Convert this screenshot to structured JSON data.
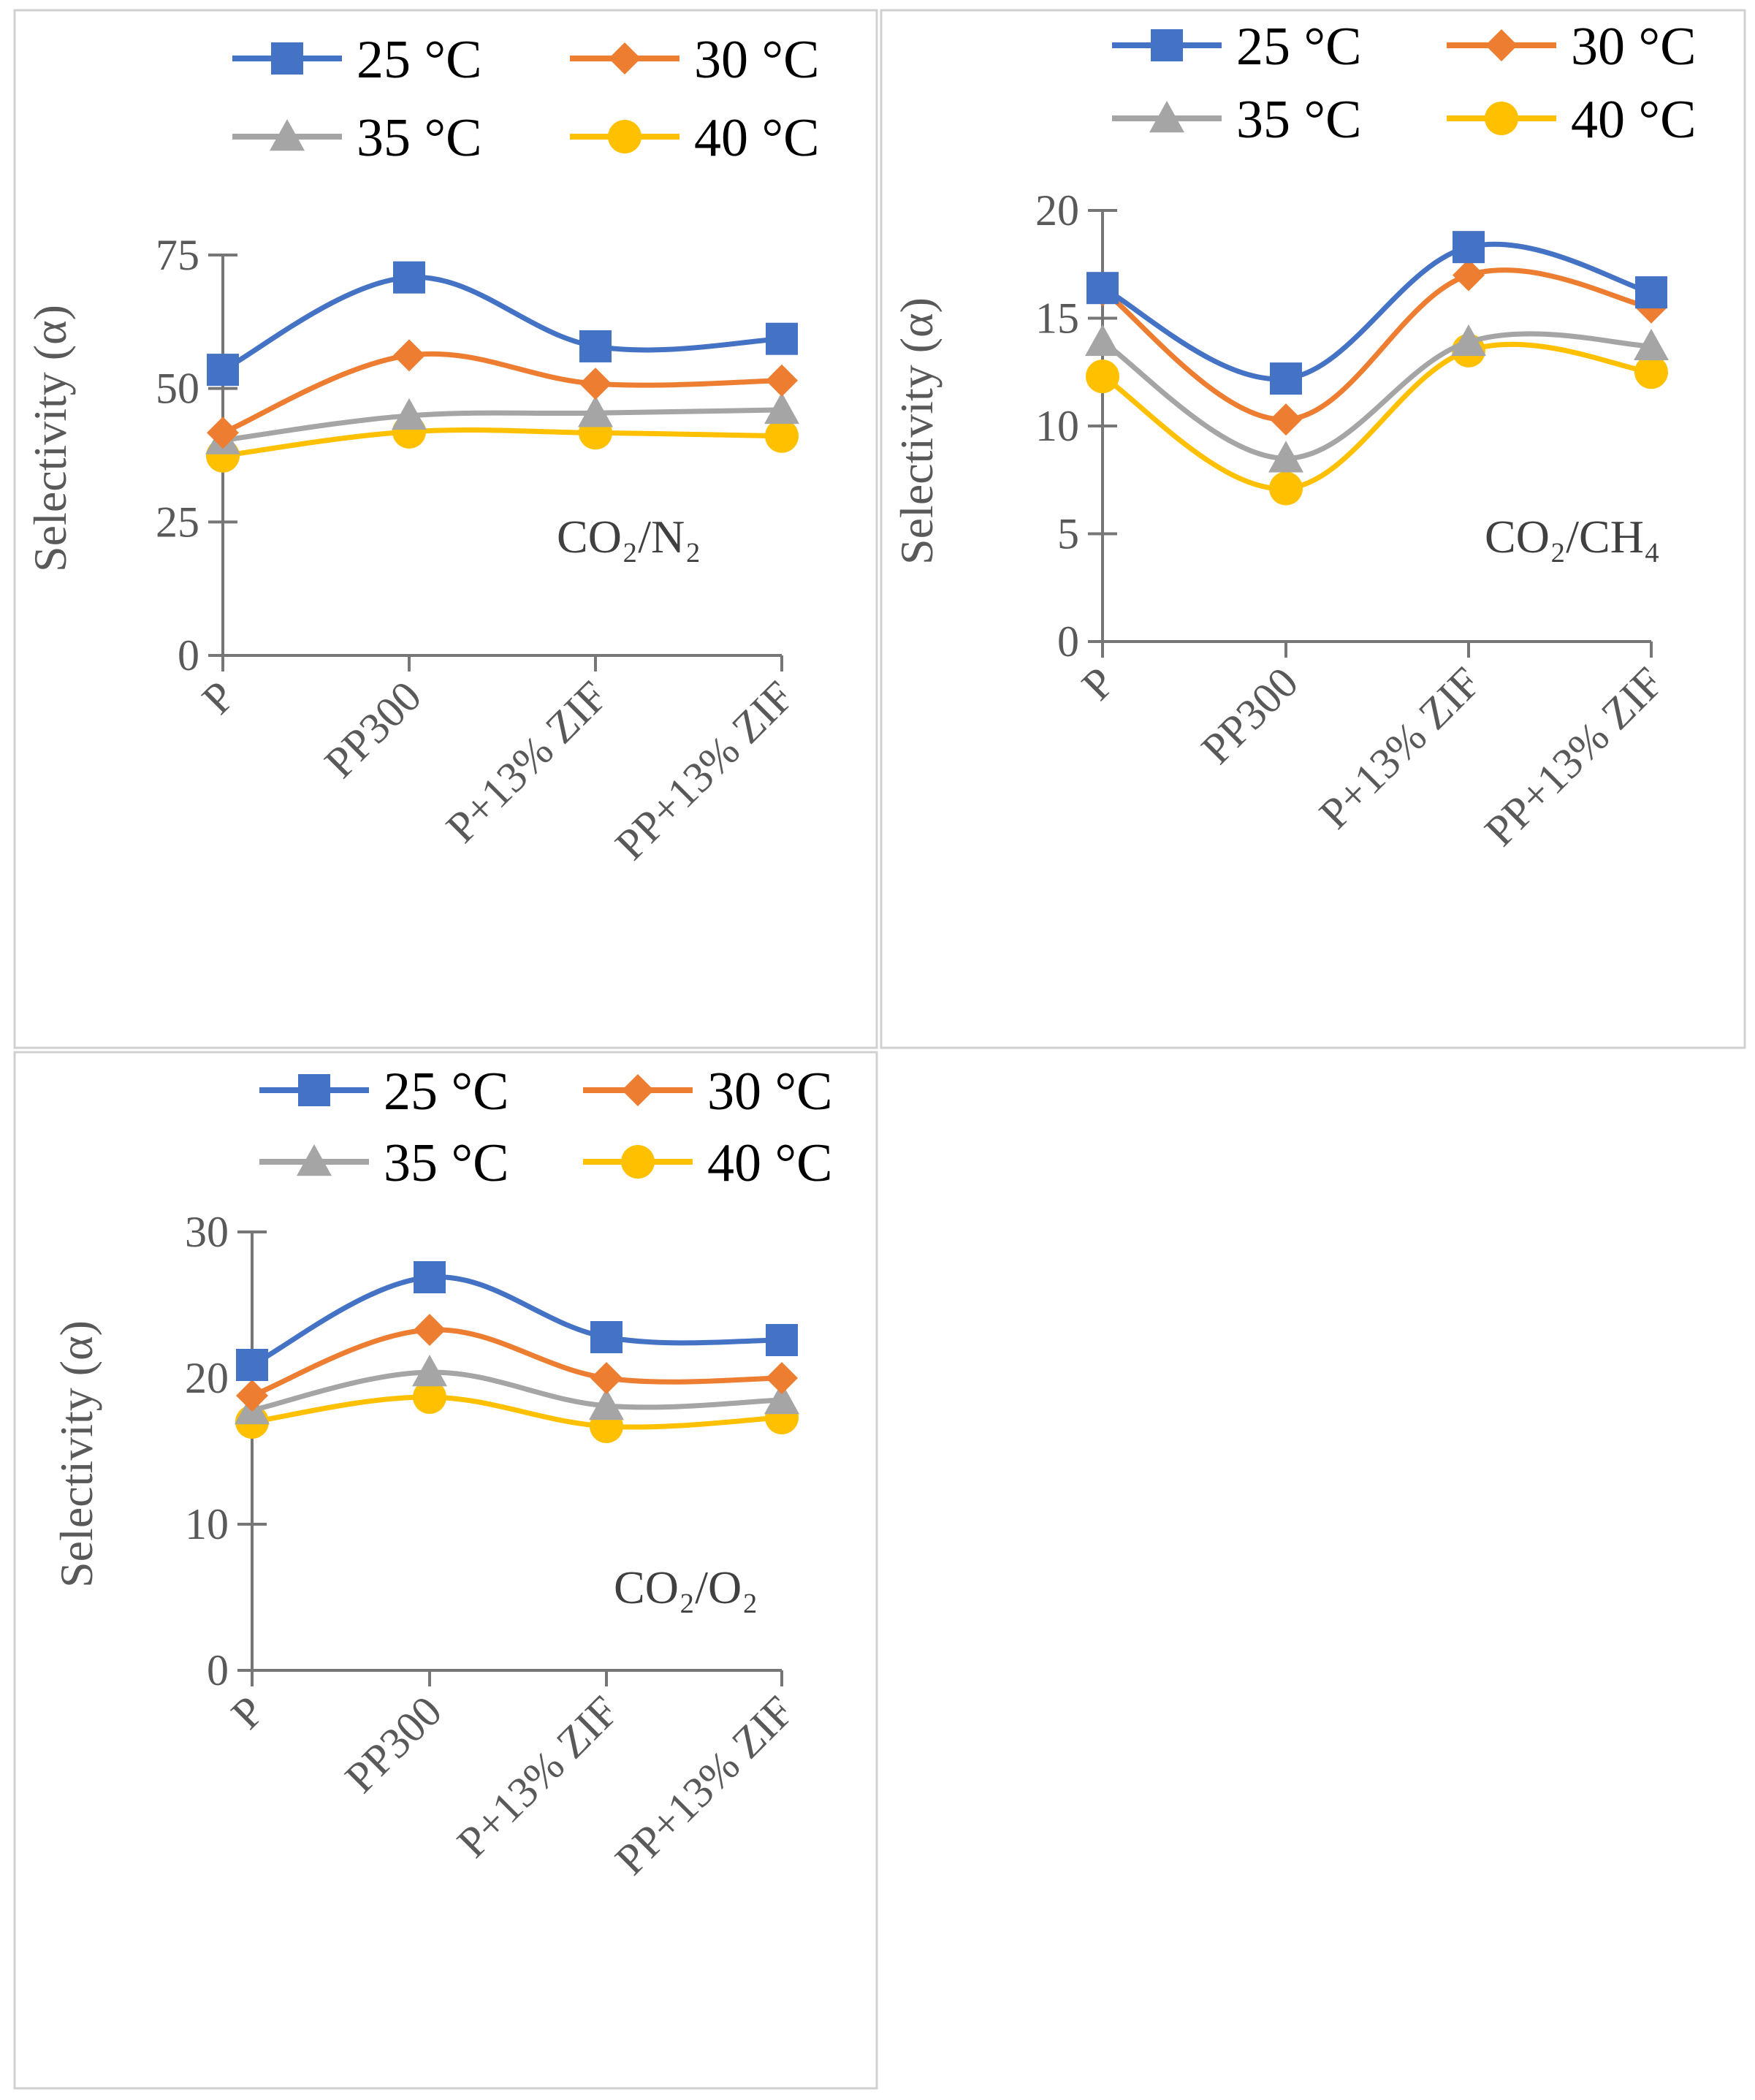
{
  "colors": {
    "s25": "#4472C4",
    "s30": "#ED7D31",
    "s35": "#A5A5A5",
    "s40": "#FFC000",
    "axis": "#767676",
    "text": "#595959"
  },
  "chart_data": [
    {
      "type": "line",
      "title": "",
      "ylabel": "Selectivity (α)",
      "annotation": "CO₂/N₂",
      "categories": [
        "P",
        "PP300",
        "P+13% ZIF",
        "PP+13% ZIF"
      ],
      "ylim": [
        0,
        75
      ],
      "yticks": [
        0,
        25,
        50,
        75
      ],
      "grid": false,
      "legend_position": "top",
      "series": [
        {
          "name": "25 °C",
          "marker": "square",
          "color": "#4472C4",
          "values": [
            53.5,
            70.8,
            57.9,
            59.3
          ]
        },
        {
          "name": "30 °C",
          "marker": "diamond",
          "color": "#ED7D31",
          "values": [
            41.7,
            56.2,
            50.9,
            51.5
          ]
        },
        {
          "name": "35 °C",
          "marker": "triangle",
          "color": "#A5A5A5",
          "values": [
            40.3,
            44.9,
            45.4,
            46.0
          ]
        },
        {
          "name": "40 °C",
          "marker": "circle",
          "color": "#FFC000",
          "values": [
            37.4,
            41.9,
            41.7,
            41.1
          ]
        }
      ]
    },
    {
      "type": "line",
      "title": "",
      "ylabel": "Selectivity (α)",
      "annotation": "CO₂/CH₄",
      "categories": [
        "P",
        "PP300",
        "P+13% ZIF",
        "PP+13% ZIF"
      ],
      "ylim": [
        0,
        20
      ],
      "yticks": [
        0,
        5,
        10,
        15,
        20
      ],
      "grid": false,
      "legend_position": "top",
      "series": [
        {
          "name": "25 °C",
          "marker": "square",
          "color": "#4472C4",
          "values": [
            16.4,
            12.2,
            18.3,
            16.2
          ]
        },
        {
          "name": "30 °C",
          "marker": "diamond",
          "color": "#ED7D31",
          "values": [
            16.3,
            10.3,
            17.0,
            15.5
          ]
        },
        {
          "name": "35 °C",
          "marker": "triangle",
          "color": "#A5A5A5",
          "values": [
            13.9,
            8.5,
            13.9,
            13.7
          ]
        },
        {
          "name": "40 °C",
          "marker": "circle",
          "color": "#FFC000",
          "values": [
            12.3,
            7.1,
            13.5,
            12.5
          ]
        }
      ]
    },
    {
      "type": "line",
      "title": "",
      "ylabel": "Selectivity (α)",
      "annotation": "CO₂/O₂",
      "categories": [
        "P",
        "PP300",
        "P+13% ZIF",
        "PP+13% ZIF"
      ],
      "ylim": [
        0,
        30
      ],
      "yticks": [
        0,
        10,
        20,
        30
      ],
      "grid": false,
      "legend_position": "top",
      "series": [
        {
          "name": "25 °C",
          "marker": "square",
          "color": "#4472C4",
          "values": [
            20.9,
            26.9,
            22.8,
            22.6
          ]
        },
        {
          "name": "30 °C",
          "marker": "diamond",
          "color": "#ED7D31",
          "values": [
            18.8,
            23.3,
            20.0,
            20.0
          ]
        },
        {
          "name": "35 °C",
          "marker": "triangle",
          "color": "#A5A5A5",
          "values": [
            17.8,
            20.4,
            18.1,
            18.5
          ]
        },
        {
          "name": "40 °C",
          "marker": "circle",
          "color": "#FFC000",
          "values": [
            17.0,
            18.7,
            16.7,
            17.3
          ]
        }
      ]
    }
  ]
}
